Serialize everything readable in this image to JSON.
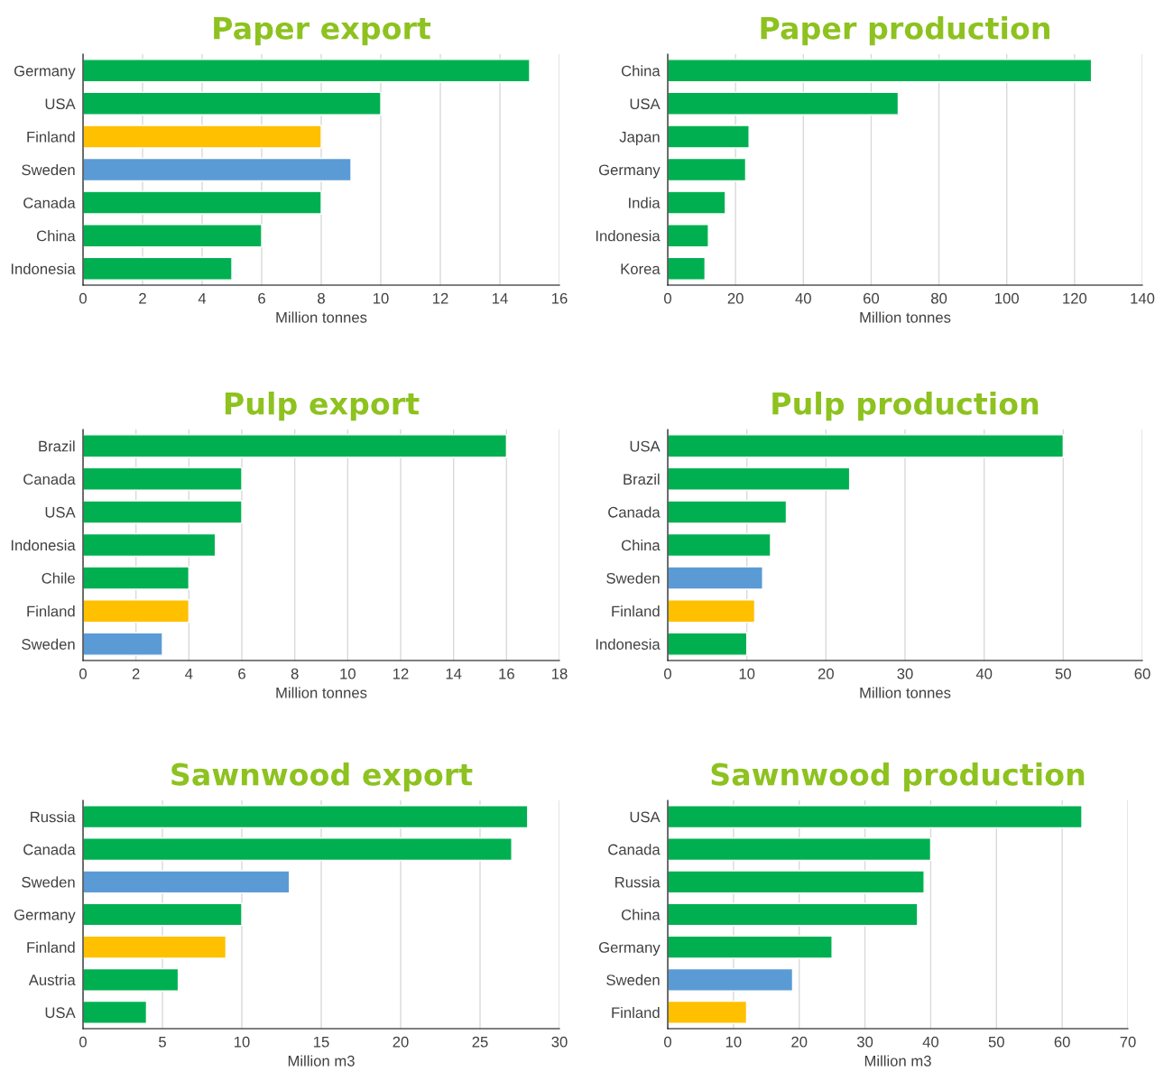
{
  "chart_data": [
    {
      "type": "bar",
      "orientation": "horizontal",
      "title": "Paper export",
      "xlabel": "Million tonnes",
      "categories": [
        "Germany",
        "USA",
        "Finland",
        "Sweden",
        "Canada",
        "China",
        "Indonesia"
      ],
      "values": [
        15,
        10,
        8,
        9,
        8,
        6,
        5
      ],
      "colors": [
        "#00b050",
        "#00b050",
        "#ffc000",
        "#5b9bd5",
        "#00b050",
        "#00b050",
        "#00b050"
      ],
      "xlim": [
        0,
        16
      ],
      "xticks": [
        0,
        2,
        4,
        6,
        8,
        10,
        12,
        14,
        16
      ],
      "grid": "x",
      "legend": false
    },
    {
      "type": "bar",
      "orientation": "horizontal",
      "title": "Paper production",
      "xlabel": "Million tonnes",
      "categories": [
        "China",
        "USA",
        "Japan",
        "Germany",
        "India",
        "Indonesia",
        "Korea"
      ],
      "values": [
        125,
        68,
        24,
        23,
        17,
        12,
        11
      ],
      "colors": [
        "#00b050",
        "#00b050",
        "#00b050",
        "#00b050",
        "#00b050",
        "#00b050",
        "#00b050"
      ],
      "xlim": [
        0,
        140
      ],
      "xticks": [
        0,
        20,
        40,
        60,
        80,
        100,
        120,
        140
      ],
      "grid": "x",
      "legend": false
    },
    {
      "type": "bar",
      "orientation": "horizontal",
      "title": "Pulp export",
      "xlabel": "Million tonnes",
      "categories": [
        "Brazil",
        "Canada",
        "USA",
        "Indonesia",
        "Chile",
        "Finland",
        "Sweden"
      ],
      "values": [
        16,
        6,
        6,
        5,
        4,
        4,
        3
      ],
      "colors": [
        "#00b050",
        "#00b050",
        "#00b050",
        "#00b050",
        "#00b050",
        "#ffc000",
        "#5b9bd5"
      ],
      "xlim": [
        0,
        18
      ],
      "xticks": [
        0,
        2,
        4,
        6,
        8,
        10,
        12,
        14,
        16,
        18
      ],
      "grid": "x",
      "legend": false
    },
    {
      "type": "bar",
      "orientation": "horizontal",
      "title": "Pulp production",
      "xlabel": "Million tonnes",
      "categories": [
        "USA",
        "Brazil",
        "Canada",
        "China",
        "Sweden",
        "Finland",
        "Indonesia"
      ],
      "values": [
        50,
        23,
        15,
        13,
        12,
        11,
        10
      ],
      "colors": [
        "#00b050",
        "#00b050",
        "#00b050",
        "#00b050",
        "#5b9bd5",
        "#ffc000",
        "#00b050"
      ],
      "xlim": [
        0,
        60
      ],
      "xticks": [
        0,
        10,
        20,
        30,
        40,
        50,
        60
      ],
      "grid": "x",
      "legend": false
    },
    {
      "type": "bar",
      "orientation": "horizontal",
      "title": "Sawnwood export",
      "xlabel": "Million m3",
      "categories": [
        "Russia",
        "Canada",
        "Sweden",
        "Germany",
        "Finland",
        "Austria",
        "USA"
      ],
      "values": [
        28,
        27,
        13,
        10,
        9,
        6,
        4
      ],
      "colors": [
        "#00b050",
        "#00b050",
        "#5b9bd5",
        "#00b050",
        "#ffc000",
        "#00b050",
        "#00b050"
      ],
      "xlim": [
        0,
        30
      ],
      "xticks": [
        0,
        5,
        10,
        15,
        20,
        25,
        30
      ],
      "grid": "x",
      "legend": false
    },
    {
      "type": "bar",
      "orientation": "horizontal",
      "title": "Sawnwood production",
      "xlabel": "Million m3",
      "categories": [
        "USA",
        "Canada",
        "Russia",
        "China",
        "Germany",
        "Sweden",
        "Finland"
      ],
      "values": [
        63,
        40,
        39,
        38,
        25,
        19,
        12
      ],
      "colors": [
        "#00b050",
        "#00b050",
        "#00b050",
        "#00b050",
        "#00b050",
        "#5b9bd5",
        "#ffc000"
      ],
      "xlim": [
        0,
        70
      ],
      "xticks": [
        0,
        10,
        20,
        30,
        40,
        50,
        60,
        70
      ],
      "grid": "x",
      "legend": false
    }
  ]
}
